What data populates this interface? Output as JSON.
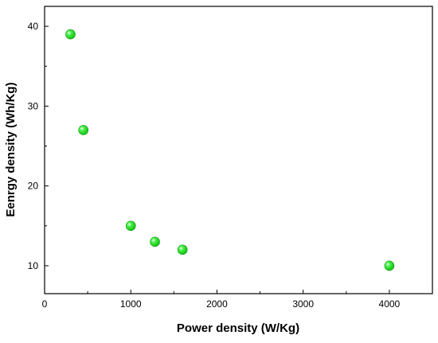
{
  "chart_data": {
    "type": "scatter",
    "xlabel": "Power density (W/Kg)",
    "ylabel": "Eenrgy density (Wh/Kg)",
    "xlim": [
      0,
      4500
    ],
    "ylim": [
      6.5,
      42.5
    ],
    "xticks": [
      0,
      1000,
      2000,
      3000,
      4000
    ],
    "yticks": [
      10,
      20,
      30,
      40
    ],
    "grid": false,
    "marker_color": "#22dd22",
    "series": [
      {
        "points": [
          {
            "x": 300,
            "y": 39
          },
          {
            "x": 450,
            "y": 27
          },
          {
            "x": 1000,
            "y": 15
          },
          {
            "x": 1280,
            "y": 13
          },
          {
            "x": 1600,
            "y": 12
          },
          {
            "x": 4000,
            "y": 10
          }
        ]
      }
    ]
  }
}
